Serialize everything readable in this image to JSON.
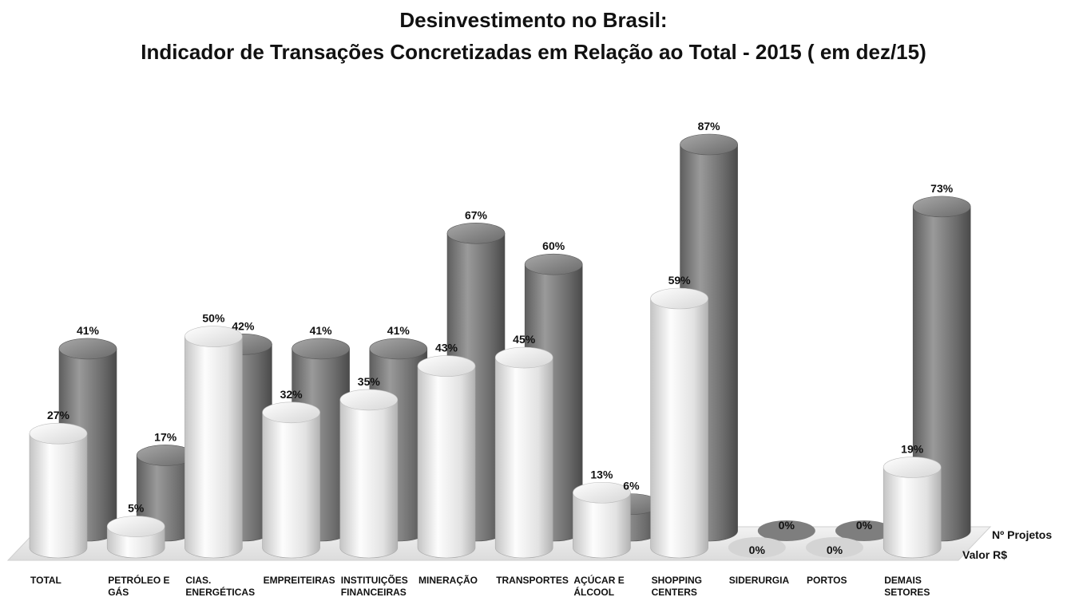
{
  "chart_data": {
    "type": "bar",
    "title": "Desinvestimento no Brasil:",
    "subtitle": "Indicador de Transações Concretizadas em Relação ao Total - 2015 ( em dez/15)",
    "categories": [
      [
        "TOTAL"
      ],
      [
        "PETRÓLEO E",
        "GÁS"
      ],
      [
        "CIAS.",
        "ENERGÉTICAS"
      ],
      [
        "EMPREITEIRAS"
      ],
      [
        "INSTITUIÇÕES",
        "FINANCEIRAS"
      ],
      [
        "MINERAÇÃO"
      ],
      [
        "TRANSPORTES"
      ],
      [
        "AÇÚCAR E",
        "ÁLCOOL"
      ],
      [
        "SHOPPING",
        "CENTERS"
      ],
      [
        "SIDERURGIA"
      ],
      [
        "PORTOS"
      ],
      [
        "DEMAIS",
        "SETORES"
      ]
    ],
    "series": [
      {
        "name": "Nº Projetos",
        "values": [
          41,
          17,
          42,
          41,
          41,
          67,
          60,
          6,
          87,
          0,
          0,
          73
        ],
        "color": "#7a7a7a"
      },
      {
        "name": "Valor R$",
        "values": [
          27,
          5,
          50,
          32,
          35,
          43,
          45,
          13,
          59,
          0,
          0,
          19
        ],
        "color": "#e6e6e6"
      }
    ],
    "value_format": "percent",
    "ylim": [
      0,
      100
    ],
    "grid": false,
    "legend": "depth-axis labels at right"
  }
}
